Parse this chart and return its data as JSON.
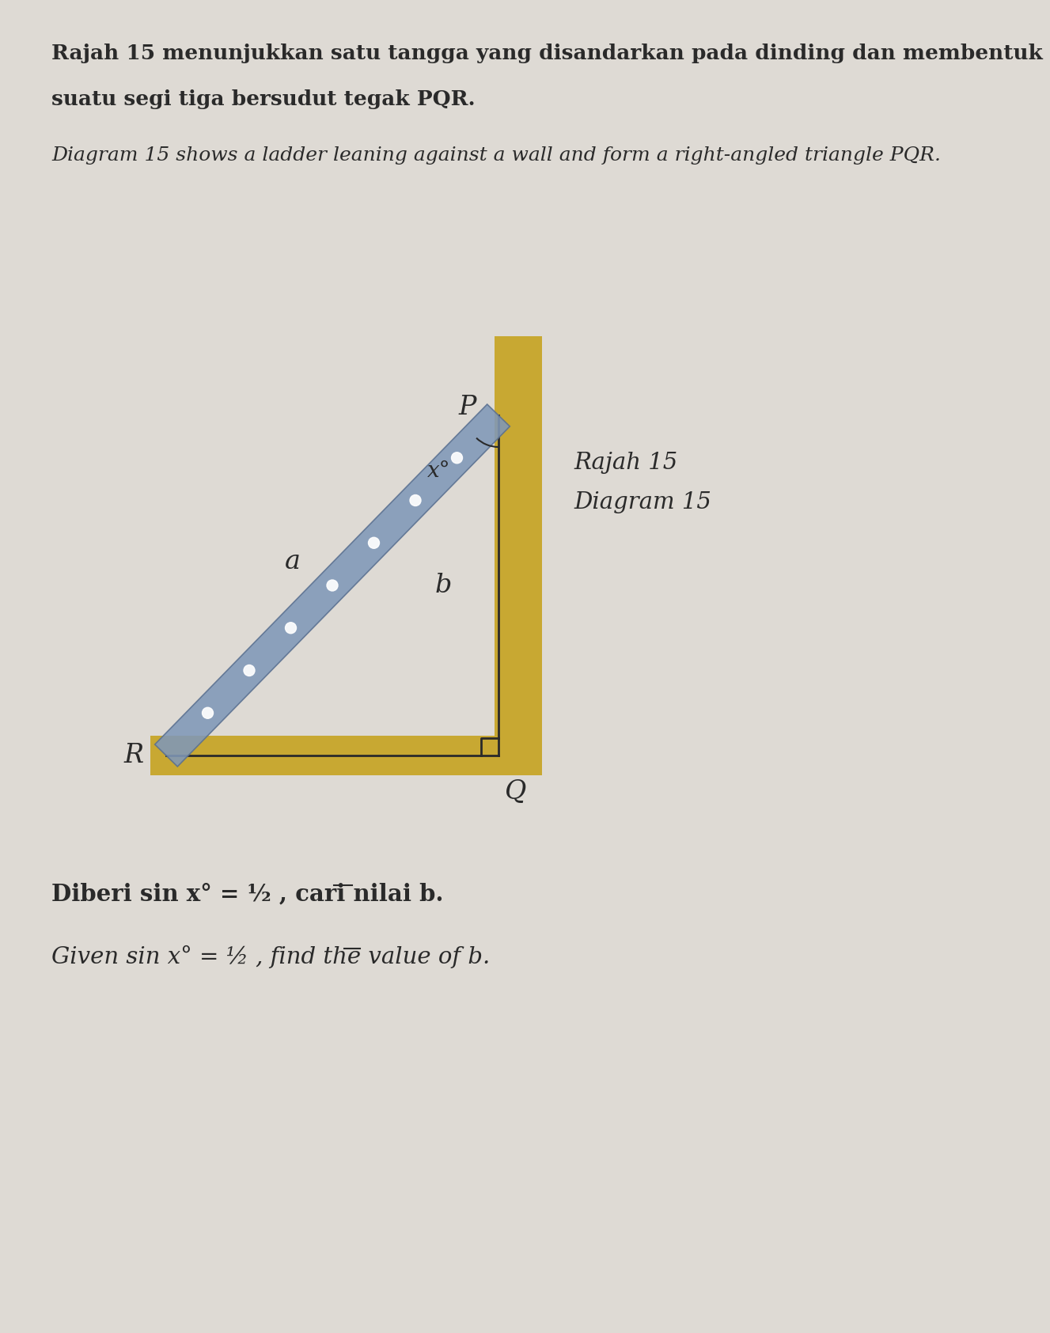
{
  "page_bg": "#dedad4",
  "wall_color": "#c8a832",
  "ladder_color": "#8098b8",
  "ladder_edge_color": "#5a7090",
  "triangle_line_color": "#2a2a2a",
  "label_color": "#2a2a2a",
  "text_color": "#2a2a2a",
  "title_malay_line1": "Rajah 15 menunjukkan satu tangga yang disandarkan pada dinding dan membentuk",
  "title_malay_line2": "suatu segi tiga bersudut tegak PQR.",
  "title_english": "Diagram 15 shows a ladder leaning against a wall and form a right-angled triangle PQR.",
  "diagram_label1": "Rajah 15",
  "diagram_label2": "Diagram 15",
  "q_malay_pre": "Diberi sin x°= ",
  "q_malay_frac_num": "1",
  "q_malay_frac_den": "2",
  "q_malay_post": ", cari nilai b.",
  "q_english_pre": "Given sin x°= ",
  "q_english_frac_num": "1",
  "q_english_frac_den": "2",
  "q_english_post": ", find the value of b."
}
